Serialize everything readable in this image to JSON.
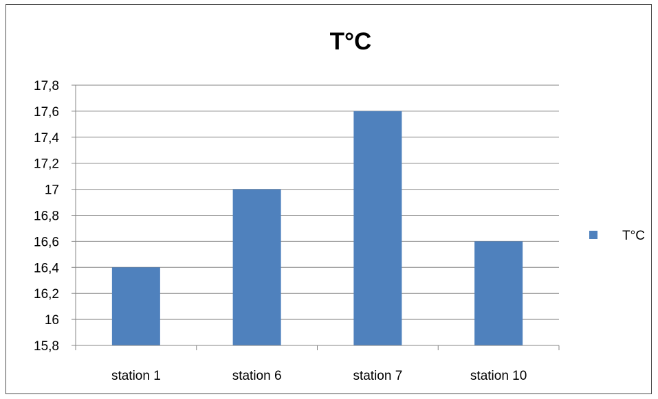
{
  "chart_data": {
    "type": "bar",
    "title": "T°C",
    "categories": [
      "station 1",
      "station 6",
      "station 7",
      "station 10"
    ],
    "series": [
      {
        "name": "T°C",
        "values": [
          16.4,
          17.0,
          17.6,
          16.6
        ],
        "color": "#4f81bd"
      }
    ],
    "ylim": [
      15.8,
      17.8
    ],
    "yticks": [
      15.8,
      16,
      16.2,
      16.4,
      16.6,
      16.8,
      17,
      17.2,
      17.4,
      17.6,
      17.8
    ],
    "ytick_labels": [
      "15,8",
      "16",
      "16,2",
      "16,4",
      "16,6",
      "16,8",
      "17",
      "17,2",
      "17,4",
      "17,6",
      "17,8"
    ],
    "grid": true,
    "legend": "right"
  }
}
